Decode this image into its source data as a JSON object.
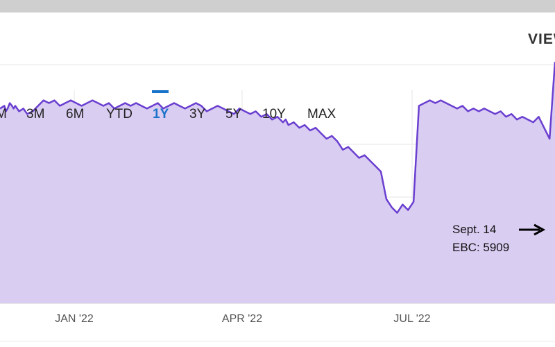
{
  "header": {
    "view_label": "VIEW"
  },
  "tabs": [
    {
      "label": "M",
      "active": false
    },
    {
      "label": "3M",
      "active": false
    },
    {
      "label": "6M",
      "active": false
    },
    {
      "label": "YTD",
      "active": false
    },
    {
      "label": "1Y",
      "active": true
    },
    {
      "label": "3Y",
      "active": false
    },
    {
      "label": "5Y",
      "active": false
    },
    {
      "label": "10Y",
      "active": false
    },
    {
      "label": "MAX",
      "active": false
    }
  ],
  "annotation": {
    "line1": "Sept. 14",
    "line2": "EBC: 5909"
  },
  "colors": {
    "accent": "#1a73c9",
    "line": "#6a3fd0",
    "fill": "#dacdf2"
  },
  "chart_data": {
    "type": "area",
    "title": "",
    "xlabel": "",
    "ylabel": "",
    "x_ticks": [
      "JAN '22",
      "APR '22",
      "JUL '22"
    ],
    "ylim": [
      0,
      100
    ],
    "grid": true,
    "series": [
      {
        "values": [
          71,
          72,
          70,
          71,
          73,
          72,
          71,
          72,
          70,
          71,
          69,
          70,
          72,
          74,
          73,
          74,
          72,
          73,
          74,
          73,
          72,
          73,
          74,
          73,
          72,
          73,
          71,
          72,
          73,
          72,
          73,
          72,
          71,
          72,
          73,
          71,
          72,
          73,
          72,
          71,
          72,
          73,
          72,
          70,
          71,
          72,
          71,
          70,
          69,
          71,
          70,
          69,
          70,
          68,
          69,
          67,
          68,
          66,
          67,
          65,
          66,
          64,
          65,
          63,
          64,
          62,
          60,
          61,
          59,
          56,
          57,
          55,
          53,
          54,
          52,
          50,
          48,
          38,
          35,
          33,
          36,
          34,
          37,
          72,
          73,
          74,
          73,
          74,
          73,
          72,
          71,
          72,
          70,
          71,
          70,
          71,
          70,
          69,
          70,
          68,
          69,
          67,
          68,
          67,
          66,
          68,
          64,
          60,
          88
        ]
      }
    ],
    "x_index": [
      0,
      8,
      11,
      14,
      18,
      22,
      25,
      28,
      35,
      43,
      50,
      60,
      70,
      80,
      90,
      100,
      110,
      120,
      130,
      140,
      150,
      160,
      170,
      180,
      190,
      200,
      210,
      220,
      230,
      240,
      250,
      260,
      270,
      280,
      290,
      300,
      310,
      320,
      330,
      340,
      350,
      360,
      370,
      380,
      390,
      400,
      410,
      420,
      430,
      440,
      450,
      460,
      470,
      480,
      490,
      500,
      510,
      520,
      525,
      530,
      540,
      550,
      560,
      570,
      580,
      590,
      600,
      610,
      620,
      630,
      640,
      650,
      660,
      670,
      680,
      690,
      700,
      710,
      720,
      730,
      740,
      750,
      760,
      770,
      780,
      790,
      800,
      810,
      820,
      830,
      840,
      850,
      860,
      870,
      880,
      890,
      900,
      910,
      920,
      930,
      940,
      950,
      960,
      970,
      980,
      990,
      1000,
      1010,
      1020
    ],
    "annotation": {
      "text": [
        "Sept. 14",
        "EBC: 5909"
      ],
      "arrow": "right"
    }
  }
}
